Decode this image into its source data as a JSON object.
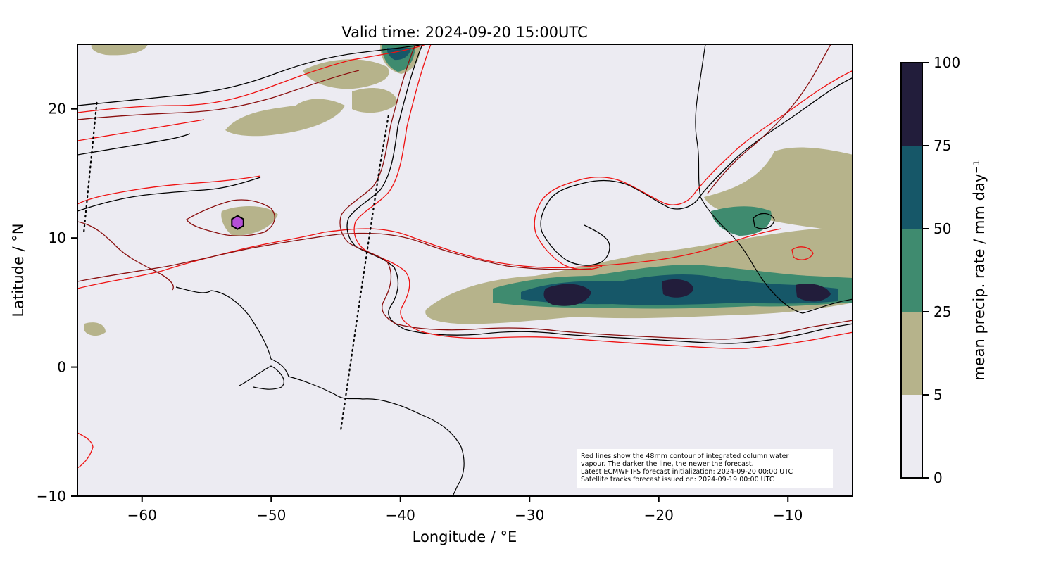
{
  "title": "Valid time: 2024-09-20 15:00UTC",
  "map": {
    "x_axis_label": "Longitude / °E",
    "y_axis_label": "Latitude / °N",
    "lon_range": [
      -65,
      -5
    ],
    "lat_range": [
      -10,
      25
    ],
    "lon_ticks": [
      -60,
      -50,
      -40,
      -30,
      -20,
      -10
    ],
    "lat_ticks": [
      -10,
      0,
      10,
      20
    ],
    "lon_tick_labels": [
      "−60",
      "−50",
      "−40",
      "−30",
      "−20",
      "−10"
    ],
    "lat_tick_labels": [
      "−10",
      "0",
      "10",
      "20"
    ],
    "background_color": "#ecebf2",
    "note_lines": [
      "Red lines show the 48mm contour of integrated column water",
      "vapour. The darker the line, the newer the forecast.",
      "Latest ECMWF IFS forecast initialization: 2024-09-20 00:00 UTC",
      "Satellite tracks forecast issued on: 2024-09-19 00:00 UTC"
    ],
    "hexagon_marker": {
      "lon": -52.6,
      "lat": 11.2,
      "color": "#b44fd6"
    },
    "satellite_tracks": [
      {
        "points": [
          [
            -64.5,
            10.5
          ],
          [
            -63.5,
            20.5
          ]
        ]
      },
      {
        "points": [
          [
            -44.6,
            -4.8
          ],
          [
            -43.1,
            5.5
          ],
          [
            -41.6,
            15.5
          ],
          [
            -40.9,
            19.6
          ]
        ]
      }
    ]
  },
  "colorbar": {
    "label": "mean precip. rate / mm day⁻¹",
    "bounds": [
      0,
      5,
      25,
      50,
      75,
      100
    ],
    "tick_labels": [
      "0",
      "5",
      "25",
      "50",
      "75",
      "100"
    ],
    "colors": [
      "#ecebf2",
      "#b6b38b",
      "#3f8b6f",
      "#165768",
      "#221d3b"
    ]
  },
  "precip_colors": {
    "light": "#b6b38b",
    "moderate": "#3f8b6f",
    "heavy": "#165768",
    "extreme": "#221d3b"
  },
  "contour_colors": [
    "#ee1111",
    "#8a0f0f",
    "#000000"
  ]
}
